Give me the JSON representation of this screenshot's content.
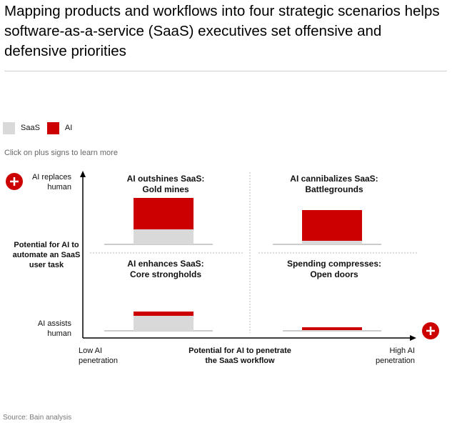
{
  "header": {
    "title": "Mapping products and workflows into four strategic scenarios helps software-as-a-service (SaaS) executives set offensive and defensive priorities"
  },
  "legend": [
    {
      "label": "SaaS",
      "color": "#d9d9d9"
    },
    {
      "label": "AI",
      "color": "#cc0000"
    }
  ],
  "hint": "Click on plus signs to learn more",
  "source": "Source: Bain analysis",
  "colors": {
    "accent": "#cc0000",
    "saas": "#d9d9d9",
    "axis": "#000000",
    "divider": "#bbbbbb"
  },
  "chart_data": {
    "type": "bar",
    "title": "Mapping products and workflows into four strategic scenarios",
    "ylabel": "Potential for AI to automate an SaaS user task",
    "xlabel": "Potential for AI to penetrate the SaaS workflow",
    "y_low_label": "AI assists human",
    "y_high_label": "AI replaces human",
    "x_low_label": "Low AI penetration",
    "x_high_label": "High AI penetration",
    "series": [
      {
        "name": "SaaS"
      },
      {
        "name": "AI"
      }
    ],
    "quadrants": [
      {
        "title": "AI outshines SaaS:",
        "subtitle": "Gold mines",
        "position": "top-left",
        "saas": 21,
        "ai": 44
      },
      {
        "title": "AI cannibalizes SaaS:",
        "subtitle": "Battlegrounds",
        "position": "top-right",
        "saas": 5,
        "ai": 43
      },
      {
        "title": "AI enhances SaaS:",
        "subtitle": "Core strongholds",
        "position": "bottom-left",
        "saas": 21,
        "ai": 6
      },
      {
        "title": "Spending compresses:",
        "subtitle": "Open doors",
        "position": "bottom-right",
        "saas": 1,
        "ai": 4
      }
    ]
  }
}
